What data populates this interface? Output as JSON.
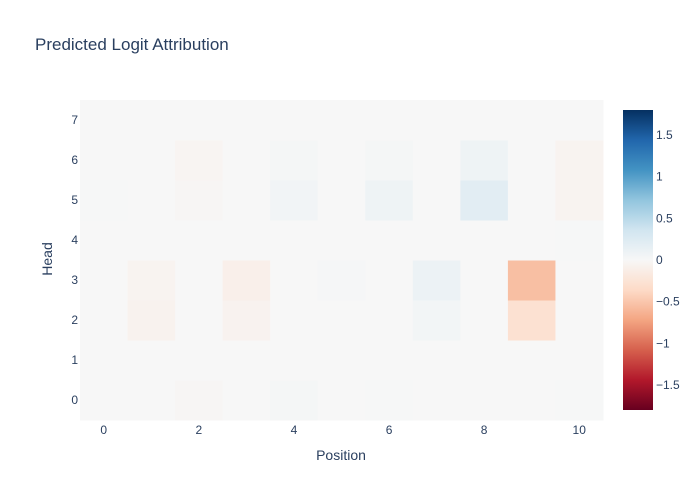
{
  "chart_data": {
    "type": "heatmap",
    "title": "Predicted Logit Attribution",
    "xlabel": "Position",
    "ylabel": "Head",
    "x": [
      0,
      1,
      2,
      3,
      4,
      5,
      6,
      7,
      8,
      9,
      10
    ],
    "y": [
      0,
      1,
      2,
      3,
      4,
      5,
      6,
      7
    ],
    "x_tick_labels": [
      "0",
      "2",
      "4",
      "6",
      "8",
      "10"
    ],
    "y_tick_labels": [
      "0",
      "1",
      "2",
      "3",
      "4",
      "5",
      "6",
      "7"
    ],
    "z": [
      [
        0.0,
        0.0,
        -0.02,
        0.0,
        0.03,
        0.0,
        0.01,
        0.0,
        0.0,
        0.0,
        0.01
      ],
      [
        0.0,
        0.0,
        0.0,
        0.0,
        0.0,
        0.0,
        0.0,
        0.0,
        0.0,
        0.0,
        0.0
      ],
      [
        0.0,
        -0.07,
        0.0,
        -0.06,
        0.0,
        0.0,
        0.0,
        0.05,
        0.0,
        -0.28,
        0.0
      ],
      [
        0.0,
        -0.05,
        0.0,
        -0.1,
        0.0,
        0.02,
        0.0,
        0.1,
        0.0,
        -0.55,
        0.0
      ],
      [
        0.0,
        0.0,
        0.0,
        0.0,
        0.0,
        0.0,
        0.0,
        0.0,
        0.0,
        0.0,
        0.01
      ],
      [
        0.01,
        0.0,
        -0.02,
        0.0,
        0.06,
        0.0,
        0.09,
        0.0,
        0.2,
        0.0,
        -0.05
      ],
      [
        0.0,
        0.0,
        -0.04,
        0.0,
        0.03,
        0.0,
        0.03,
        0.0,
        0.09,
        0.0,
        -0.05
      ],
      [
        0.0,
        0.0,
        0.0,
        0.0,
        0.0,
        0.0,
        0.0,
        0.0,
        0.0,
        0.0,
        0.0
      ]
    ],
    "zrange": [
      -1.8,
      1.8
    ],
    "colorscale": "RdBu",
    "colorbar_ticks": [
      "1.5",
      "1",
      "0.5",
      "0",
      "−0.5",
      "−1",
      "−1.5"
    ],
    "colorbar_tick_values": [
      1.5,
      1,
      0.5,
      0,
      -0.5,
      -1,
      -1.5
    ],
    "grid": false
  }
}
